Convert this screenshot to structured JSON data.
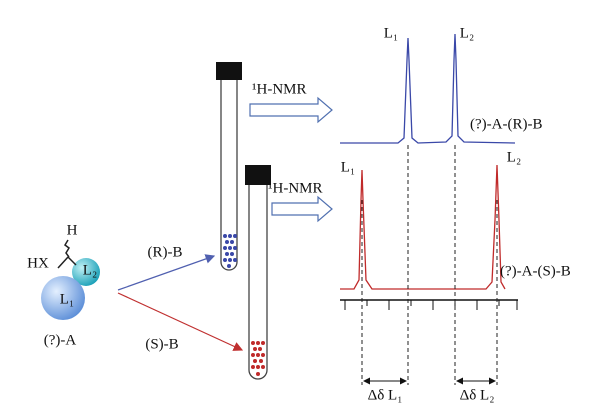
{
  "spectrum_top": {
    "peak1": "L₁",
    "peak2": "L₂",
    "label": "(?)-A-(R)-B"
  },
  "spectrum_bottom": {
    "peak1": "L₁",
    "peak2": "L₂",
    "label": "(?)-A-(S)-B"
  },
  "nmr_top": "¹H-NMR",
  "nmr_bottom": "¹H-NMR",
  "molecule": {
    "h": "H",
    "hx": "HX",
    "l2": "L₂",
    "l1": "L₁",
    "name": "(?)-A"
  },
  "reagent_r": "(R)-B",
  "reagent_s": "(S)-B",
  "delta_l1": "Δδ L₁",
  "delta_l2": "Δδ L₂"
}
